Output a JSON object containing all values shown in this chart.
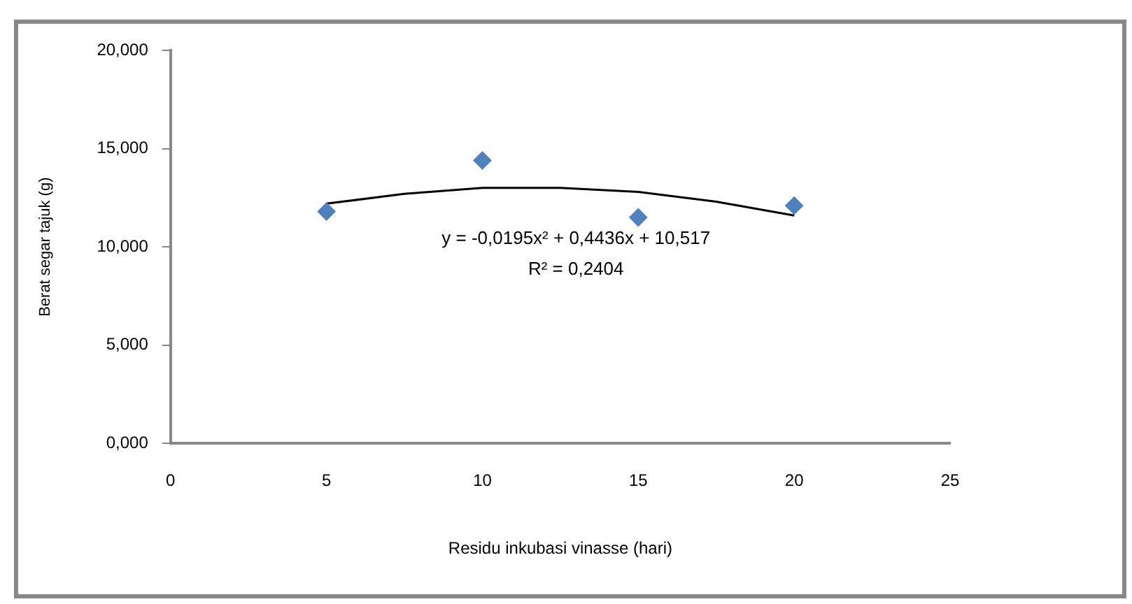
{
  "chart_data": {
    "type": "scatter",
    "xlabel": "Residu inkubasi vinasse (hari)",
    "ylabel": "Berat segar tajuk (g)",
    "xlim": [
      0,
      25
    ],
    "xticks": [
      0,
      5,
      10,
      15,
      20,
      25
    ],
    "ylim": [
      0,
      20
    ],
    "yticks": [
      {
        "value": 0,
        "label": "0,000"
      },
      {
        "value": 5,
        "label": "5,000"
      },
      {
        "value": 10,
        "label": "10,000"
      },
      {
        "value": 15,
        "label": "15,000"
      },
      {
        "value": 20,
        "label": "20,000"
      }
    ],
    "grid": false,
    "legend": false,
    "marker": "diamond",
    "series": [
      {
        "type": "scatter",
        "color": "#4f81bd",
        "x": [
          5,
          10,
          15,
          20
        ],
        "values": [
          11.8,
          14.4,
          11.5,
          12.1
        ]
      },
      {
        "type": "line",
        "color": "#000000",
        "marker": "none",
        "x": [
          5,
          7.5,
          10,
          12.5,
          15,
          17.5,
          20
        ],
        "values": [
          12.2,
          12.7,
          13.0,
          13.0,
          12.8,
          12.3,
          11.6
        ]
      }
    ],
    "annotations": [
      "y = -0,0195x² + 0,4436x + 10,517",
      "R² = 0,2404"
    ]
  }
}
